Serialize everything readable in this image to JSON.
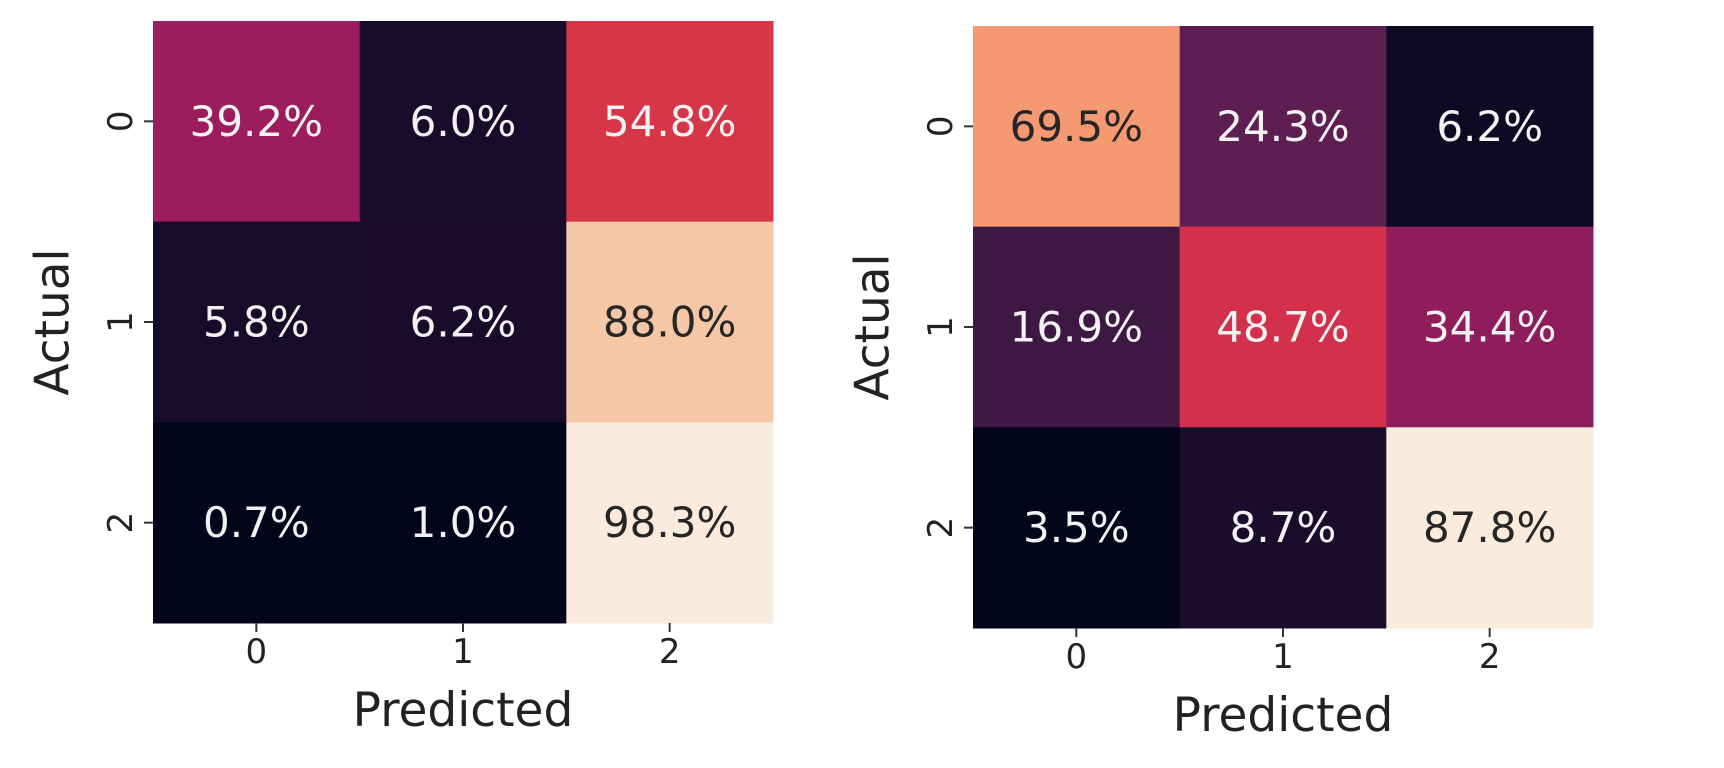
{
  "chart_data": [
    {
      "type": "heatmap",
      "xlabel": "Predicted",
      "ylabel": "Actual",
      "x_categories": [
        "0",
        "1",
        "2"
      ],
      "y_categories": [
        "0",
        "1",
        "2"
      ],
      "value_format": "percent",
      "values": [
        [
          39.2,
          6.0,
          54.8
        ],
        [
          5.8,
          6.2,
          88.0
        ],
        [
          0.7,
          1.0,
          98.3
        ]
      ],
      "cell_labels": [
        [
          "39.2%",
          "6.0%",
          "54.8%"
        ],
        [
          "5.8%",
          "6.2%",
          "88.0%"
        ],
        [
          "0.7%",
          "1.0%",
          "98.3%"
        ]
      ],
      "colorbar": false,
      "colormap": "rocket"
    },
    {
      "type": "heatmap",
      "xlabel": "Predicted",
      "ylabel": "Actual",
      "x_categories": [
        "0",
        "1",
        "2"
      ],
      "y_categories": [
        "0",
        "1",
        "2"
      ],
      "value_format": "percent",
      "values": [
        [
          69.5,
          24.3,
          6.2
        ],
        [
          16.9,
          48.7,
          34.4
        ],
        [
          3.5,
          8.7,
          87.8
        ]
      ],
      "cell_labels": [
        [
          "69.5%",
          "24.3%",
          "6.2%"
        ],
        [
          "16.9%",
          "48.7%",
          "34.4%"
        ],
        [
          "3.5%",
          "8.7%",
          "87.8%"
        ]
      ],
      "colorbar": false,
      "colormap": "rocket"
    }
  ]
}
